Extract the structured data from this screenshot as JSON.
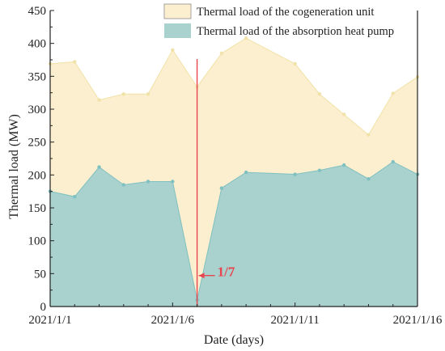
{
  "chart_data": {
    "type": "area",
    "title": "",
    "xlabel": "Date (days)",
    "ylabel": "Thermal load (MW)",
    "ylim": [
      0,
      450
    ],
    "yticks": [
      0,
      50,
      100,
      150,
      200,
      250,
      300,
      350,
      400,
      450
    ],
    "xlim": [
      1,
      16
    ],
    "xtick_values": [
      1,
      6,
      11,
      16
    ],
    "xtick_labels": [
      "2021/1/1",
      "2021/1/6",
      "2021/1/11",
      "2021/1/16"
    ],
    "x": [
      1,
      2,
      3,
      4,
      5,
      6,
      7,
      8,
      9,
      11,
      12,
      13,
      14,
      15,
      16
    ],
    "series": [
      {
        "name": "Thermal load of the cogeneration unit",
        "color": "#fcefcf",
        "line_color": "#f0e2a8",
        "values": [
          369,
          372,
          314,
          323,
          323,
          390,
          334,
          385,
          408,
          369,
          323,
          292,
          261,
          324,
          349
        ]
      },
      {
        "name": "Thermal load of the absorption heat pump",
        "color": "#a9d2cf",
        "line_color": "#7fc0c0",
        "values": [
          175,
          167,
          212,
          185,
          190,
          190,
          10,
          180,
          204,
          201,
          207,
          215,
          194,
          220,
          201
        ]
      }
    ],
    "annotation": {
      "label": "1/7",
      "x": 7,
      "y": 52,
      "line_color": "#e8454f"
    },
    "legend_position": "top-right",
    "grid": false
  }
}
